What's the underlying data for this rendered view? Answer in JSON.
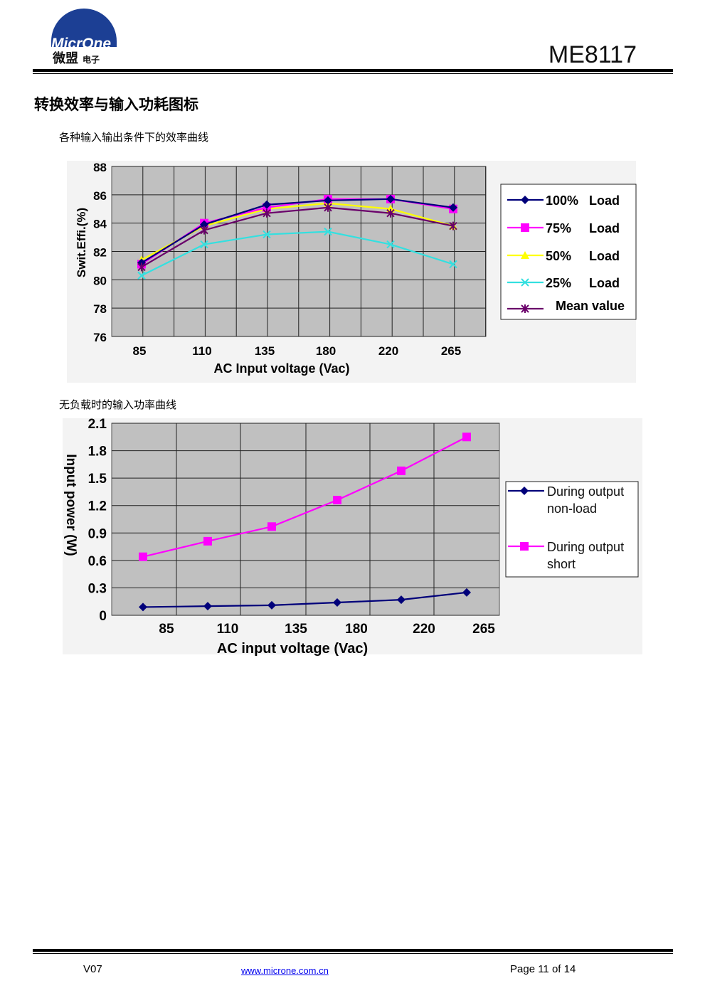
{
  "header": {
    "logo_text_en": "MicrOne",
    "logo_text_cn": "微盟",
    "logo_text_small": "电子",
    "doc_id": "ME8117"
  },
  "section": {
    "title": "转换效率与输入功耗图标",
    "caption1": "各种输入输出条件下的效率曲线",
    "caption2": "无负载时的输入功率曲线"
  },
  "colors": {
    "series_100": "#00007a",
    "series_75": "#ff00ff",
    "series_50": "#ffff00",
    "series_25": "#33e0e0",
    "series_mean": "#6a006a",
    "plot_bg": "#c0c0c0"
  },
  "chart_data": [
    {
      "type": "line",
      "title": "",
      "xlabel": "AC Input voltage (Vac)",
      "ylabel": "Swit.Effi.(%)",
      "categories": [
        "85",
        "110",
        "135",
        "180",
        "220",
        "265"
      ],
      "yticks": [
        "88",
        "86",
        "84",
        "82",
        "80",
        "78",
        "76"
      ],
      "ylim": [
        76,
        88
      ],
      "series": [
        {
          "name": "100%  Load",
          "values": [
            81.2,
            83.9,
            85.3,
            85.6,
            85.7,
            85.1
          ]
        },
        {
          "name": "75%  Load",
          "values": [
            81.1,
            84.0,
            85.1,
            85.7,
            85.7,
            85.0
          ]
        },
        {
          "name": "50%  Load",
          "values": [
            81.4,
            83.8,
            85.0,
            85.4,
            85.0,
            83.8
          ]
        },
        {
          "name": "25%  Load",
          "values": [
            80.3,
            82.5,
            83.2,
            83.4,
            82.5,
            81.1
          ]
        },
        {
          "name": "Mean value",
          "values": [
            80.9,
            83.5,
            84.7,
            85.1,
            84.7,
            83.8
          ]
        }
      ]
    },
    {
      "type": "line",
      "title": "",
      "xlabel": "AC input voltage (Vac)",
      "ylabel": "Input power (W)",
      "categories": [
        "85",
        "110",
        "135",
        "180",
        "220",
        "265"
      ],
      "yticks": [
        "2.1",
        "1.8",
        "1.5",
        "1.2",
        "0.9",
        "0.6",
        "0.3",
        "0"
      ],
      "ylim": [
        0,
        2.1
      ],
      "series": [
        {
          "name": "During output non-load",
          "values": [
            0.09,
            0.1,
            0.11,
            0.14,
            0.17,
            0.25
          ]
        },
        {
          "name": "During output short",
          "values": [
            0.64,
            0.81,
            0.97,
            1.26,
            1.58,
            1.95
          ]
        }
      ]
    }
  ],
  "footer": {
    "version": "V07",
    "url": "www.microne.com.cn",
    "page": "Page 11 of 14"
  }
}
